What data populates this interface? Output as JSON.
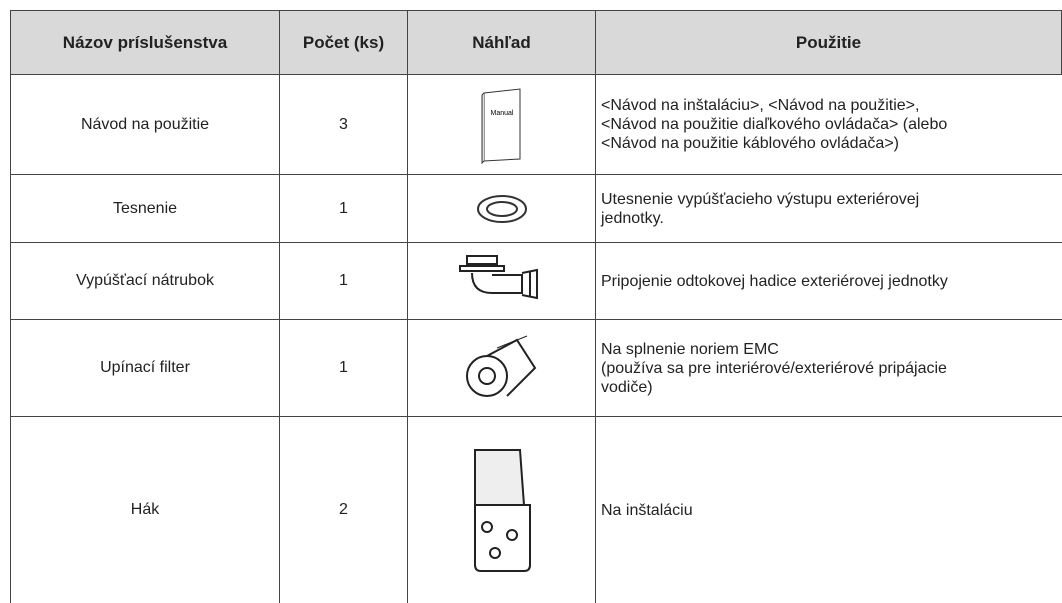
{
  "table": {
    "header": [
      "Názov príslušenstva",
      "Počet (ks)",
      "Náhľad",
      "Použitie"
    ],
    "rows": [
      {
        "name": "Návod na použitie",
        "count": "3",
        "preview_label": "Manual",
        "usage": [
          "<Návod na inštaláciu>, <Návod na použitie>,",
          "<Návod na použitie diaľkového ovládača> (alebo",
          "<Návod na použitie káblového ovládača>)"
        ]
      },
      {
        "name": "Tesnenie",
        "count": "1",
        "usage": [
          "Utesnenie vypúšťacieho výstupu exteriérovej",
          "jednotky."
        ]
      },
      {
        "name": "Vypúšťací nátrubok",
        "count": "1",
        "usage": [
          "Pripojenie odtokovej hadice exteriérovej jednotky"
        ]
      },
      {
        "name": "Upínací filter",
        "count": "1",
        "usage": [
          "Na splnenie noriem EMC",
          "(používa sa pre interiérové/exteriérové pripájacie",
          "vodiče)"
        ]
      },
      {
        "name": "Hák",
        "count": "2",
        "usage": [
          "Na inštaláciu"
        ]
      }
    ]
  }
}
